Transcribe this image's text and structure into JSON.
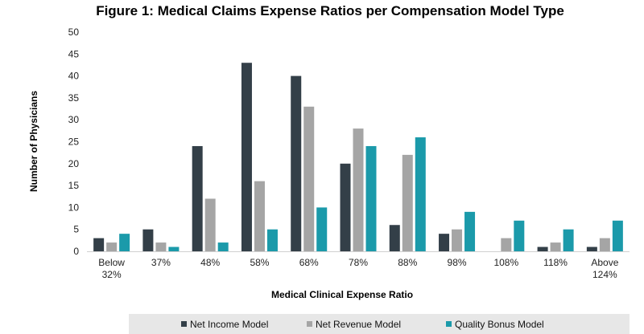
{
  "chart_data": {
    "type": "bar",
    "title": "Figure 1: Medical Claims Expense Ratios per Compensation Model Type",
    "xlabel": "Medical Clinical Expense Ratio",
    "ylabel": "Number of Physicians",
    "ylim": [
      0,
      50
    ],
    "yticks": [
      0,
      5,
      10,
      15,
      20,
      25,
      30,
      35,
      40,
      45,
      50
    ],
    "grid": false,
    "legend_position": "bottom",
    "categories": [
      [
        "Below",
        "32%"
      ],
      [
        "37%"
      ],
      [
        "48%"
      ],
      [
        "58%"
      ],
      [
        "68%"
      ],
      [
        "78%"
      ],
      [
        "88%"
      ],
      [
        "98%"
      ],
      [
        "108%"
      ],
      [
        "118%"
      ],
      [
        "Above",
        "124%"
      ]
    ],
    "series": [
      {
        "name": "Net Income Model",
        "color": "#333f48",
        "values": [
          3,
          5,
          24,
          43,
          40,
          20,
          6,
          4,
          0,
          1,
          1
        ]
      },
      {
        "name": "Net Revenue Model",
        "color": "#a5a5a5",
        "values": [
          2,
          2,
          12,
          16,
          33,
          28,
          22,
          5,
          3,
          2,
          3
        ]
      },
      {
        "name": "Quality Bonus Model",
        "color": "#1b9aaa",
        "values": [
          4,
          1,
          2,
          5,
          10,
          24,
          26,
          9,
          7,
          5,
          7
        ]
      }
    ],
    "legend_background": "#e7e7e7"
  }
}
